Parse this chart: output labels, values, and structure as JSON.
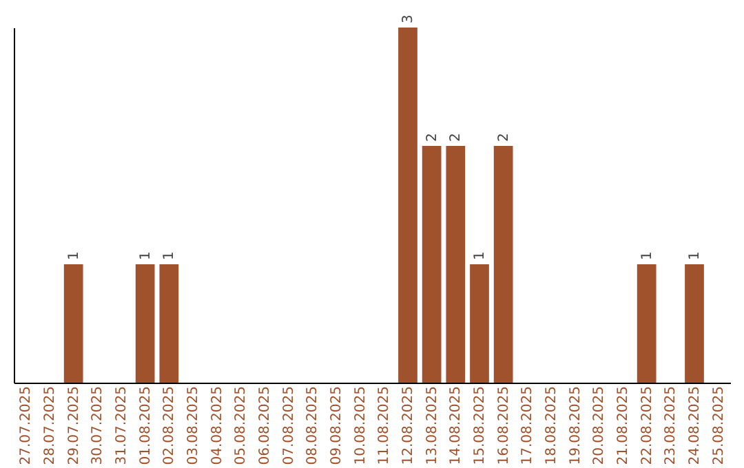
{
  "chart_data": {
    "type": "bar",
    "categories": [
      "27.07.2025",
      "28.07.2025",
      "29.07.2025",
      "30.07.2025",
      "31.07.2025",
      "01.08.2025",
      "02.08.2025",
      "03.08.2025",
      "04.08.2025",
      "05.08.2025",
      "06.08.2025",
      "07.08.2025",
      "08.08.2025",
      "09.08.2025",
      "10.08.2025",
      "11.08.2025",
      "12.08.2025",
      "13.08.2025",
      "14.08.2025",
      "15.08.2025",
      "16.08.2025",
      "17.08.2025",
      "18.08.2025",
      "19.08.2025",
      "20.08.2025",
      "21.08.2025",
      "22.08.2025",
      "23.08.2025",
      "24.08.2025",
      "25.08.2025"
    ],
    "values": [
      0,
      0,
      1,
      0,
      0,
      1,
      1,
      0,
      0,
      0,
      0,
      0,
      0,
      0,
      0,
      0,
      3,
      2,
      2,
      1,
      2,
      0,
      0,
      0,
      0,
      0,
      1,
      0,
      1,
      0
    ],
    "value_labels": [
      null,
      null,
      "1",
      null,
      null,
      "1",
      "1",
      null,
      null,
      null,
      null,
      null,
      null,
      null,
      null,
      null,
      "3",
      "2",
      "2",
      "1",
      "2",
      null,
      null,
      null,
      null,
      null,
      "1",
      null,
      "1",
      null
    ],
    "color": "#a0522d",
    "grid": false,
    "tick_labels": "x"
  }
}
